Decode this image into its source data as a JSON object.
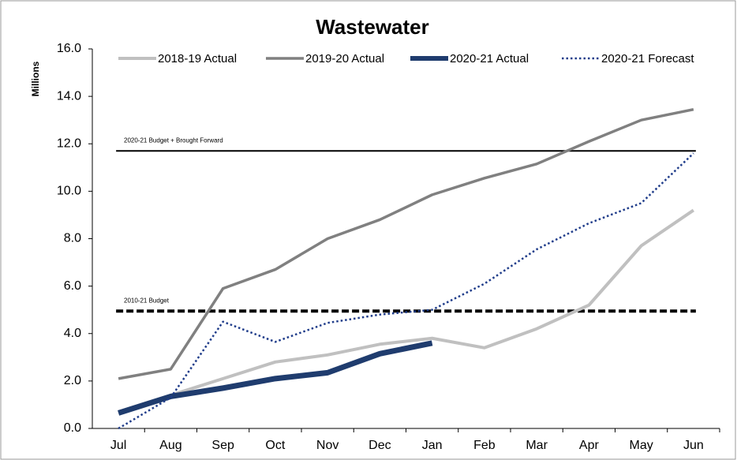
{
  "chart_data": {
    "type": "line",
    "title": "Wastewater",
    "y_label": "Millions",
    "categories": [
      "Jul",
      "Aug",
      "Sep",
      "Oct",
      "Nov",
      "Dec",
      "Jan",
      "Feb",
      "Mar",
      "Apr",
      "May",
      "Jun"
    ],
    "series": [
      {
        "name": "2018-19 Actual",
        "color": "#c0c0c0",
        "style": "solid",
        "width": 4,
        "values": [
          0.7,
          1.4,
          2.1,
          2.8,
          3.1,
          3.55,
          3.8,
          3.4,
          4.2,
          5.2,
          7.7,
          9.2
        ]
      },
      {
        "name": "2019-20 Actual",
        "color": "#808080",
        "style": "solid",
        "width": 3.5,
        "values": [
          2.1,
          2.5,
          5.9,
          6.7,
          8.0,
          8.8,
          9.85,
          10.55,
          11.15,
          12.1,
          13.0,
          13.45
        ]
      },
      {
        "name": "2020-21 Actual",
        "color": "#1f3c6e",
        "style": "solid",
        "width": 7,
        "values": [
          0.65,
          1.35,
          1.7,
          2.1,
          2.35,
          3.15,
          3.6,
          null,
          null,
          null,
          null,
          null
        ]
      },
      {
        "name": "2020-21 Forecast",
        "color": "#1f3c8a",
        "style": "dotted",
        "width": 2.5,
        "values": [
          0.0,
          1.3,
          4.5,
          3.65,
          4.45,
          4.8,
          5.0,
          6.1,
          7.55,
          8.65,
          9.5,
          11.6
        ]
      }
    ],
    "reference_lines": [
      {
        "label": "2020-21 Budget + Brought Forward",
        "value": 11.7,
        "style": "solid"
      },
      {
        "label": "2010-21 Budget",
        "value": 4.95,
        "style": "dashed"
      }
    ],
    "ylim": [
      0,
      16
    ],
    "yticks": [
      {
        "value": 0,
        "label": "0.0"
      },
      {
        "value": 2,
        "label": "2.0"
      },
      {
        "value": 4,
        "label": "4.0"
      },
      {
        "value": 6,
        "label": "6.0"
      },
      {
        "value": 8,
        "label": "8.0"
      },
      {
        "value": 10,
        "label": "10.0"
      },
      {
        "value": 12,
        "label": "12.0"
      },
      {
        "value": 14,
        "label": "14.0"
      },
      {
        "value": 16,
        "label": "16.0"
      }
    ]
  }
}
